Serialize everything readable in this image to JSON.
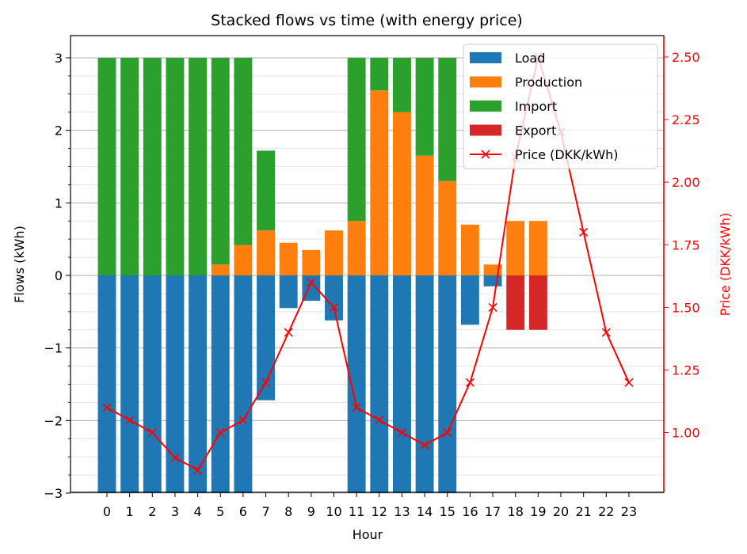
{
  "chart_data": {
    "type": "bar",
    "title": "Stacked flows vs time (with energy price)",
    "xlabel": "Hour",
    "ylabel": "Flows (kWh)",
    "y2label": "Price (DKK/kWh)",
    "categories": [
      "0",
      "1",
      "2",
      "3",
      "4",
      "5",
      "6",
      "7",
      "8",
      "9",
      "10",
      "11",
      "12",
      "13",
      "14",
      "15",
      "16",
      "17",
      "18",
      "19",
      "20",
      "21",
      "22",
      "23"
    ],
    "ylim": [
      -3,
      3.3
    ],
    "y2lim": [
      0.71,
      2.58
    ],
    "yticks": [
      -3,
      -2,
      -1,
      0,
      1,
      2,
      3
    ],
    "ytick_labels": [
      "−3",
      "−2",
      "−1",
      "0",
      "1",
      "2",
      "3"
    ],
    "y2ticks": [
      1.0,
      1.25,
      1.5,
      1.75,
      2.0,
      2.25,
      2.5
    ],
    "y2tick_labels": [
      "1.00",
      "1.25",
      "1.50",
      "1.75",
      "2.00",
      "2.25",
      "2.50"
    ],
    "grid": true,
    "legend_position": "top-right",
    "series": [
      {
        "name": "Load",
        "color": "#1f77b4",
        "values": [
          -3,
          -3,
          -3,
          -3,
          -3,
          -3,
          -3,
          -1.72,
          -0.45,
          -0.35,
          -0.62,
          -3,
          -3,
          -3,
          -3,
          -3,
          -0.68,
          -0.15,
          0,
          0,
          0,
          0,
          0,
          0
        ]
      },
      {
        "name": "Production",
        "color": "#ff7f0e",
        "values": [
          0,
          0,
          0,
          0,
          0,
          0.15,
          0.42,
          0.62,
          0.45,
          0.35,
          0.62,
          0.75,
          2.55,
          2.25,
          1.65,
          1.3,
          0.7,
          0.15,
          0.75,
          0.75,
          0,
          0,
          0,
          0
        ]
      },
      {
        "name": "Import",
        "color": "#2ca02c",
        "values": [
          3,
          3,
          3,
          3,
          3,
          2.85,
          2.58,
          1.1,
          0,
          0,
          0,
          2.25,
          0.45,
          0.75,
          1.35,
          1.7,
          0,
          0,
          0,
          0,
          0,
          0,
          0,
          0
        ]
      },
      {
        "name": "Export",
        "color": "#d62728",
        "values": [
          0,
          0,
          0,
          0,
          0,
          0,
          0,
          0,
          0,
          0,
          0,
          0,
          0,
          0,
          0,
          0,
          0,
          0,
          -0.75,
          -0.75,
          0,
          0,
          0,
          0
        ]
      },
      {
        "name": "Price (DKK/kWh)",
        "color": "#ff0000",
        "type": "line",
        "axis": "right",
        "values": [
          1.1,
          1.05,
          1.0,
          0.9,
          0.85,
          1.0,
          1.05,
          1.2,
          1.4,
          1.6,
          1.5,
          1.1,
          1.05,
          1.0,
          0.95,
          1.0,
          1.2,
          1.5,
          2.1,
          2.5,
          2.2,
          1.8,
          1.4,
          1.2
        ]
      }
    ]
  }
}
